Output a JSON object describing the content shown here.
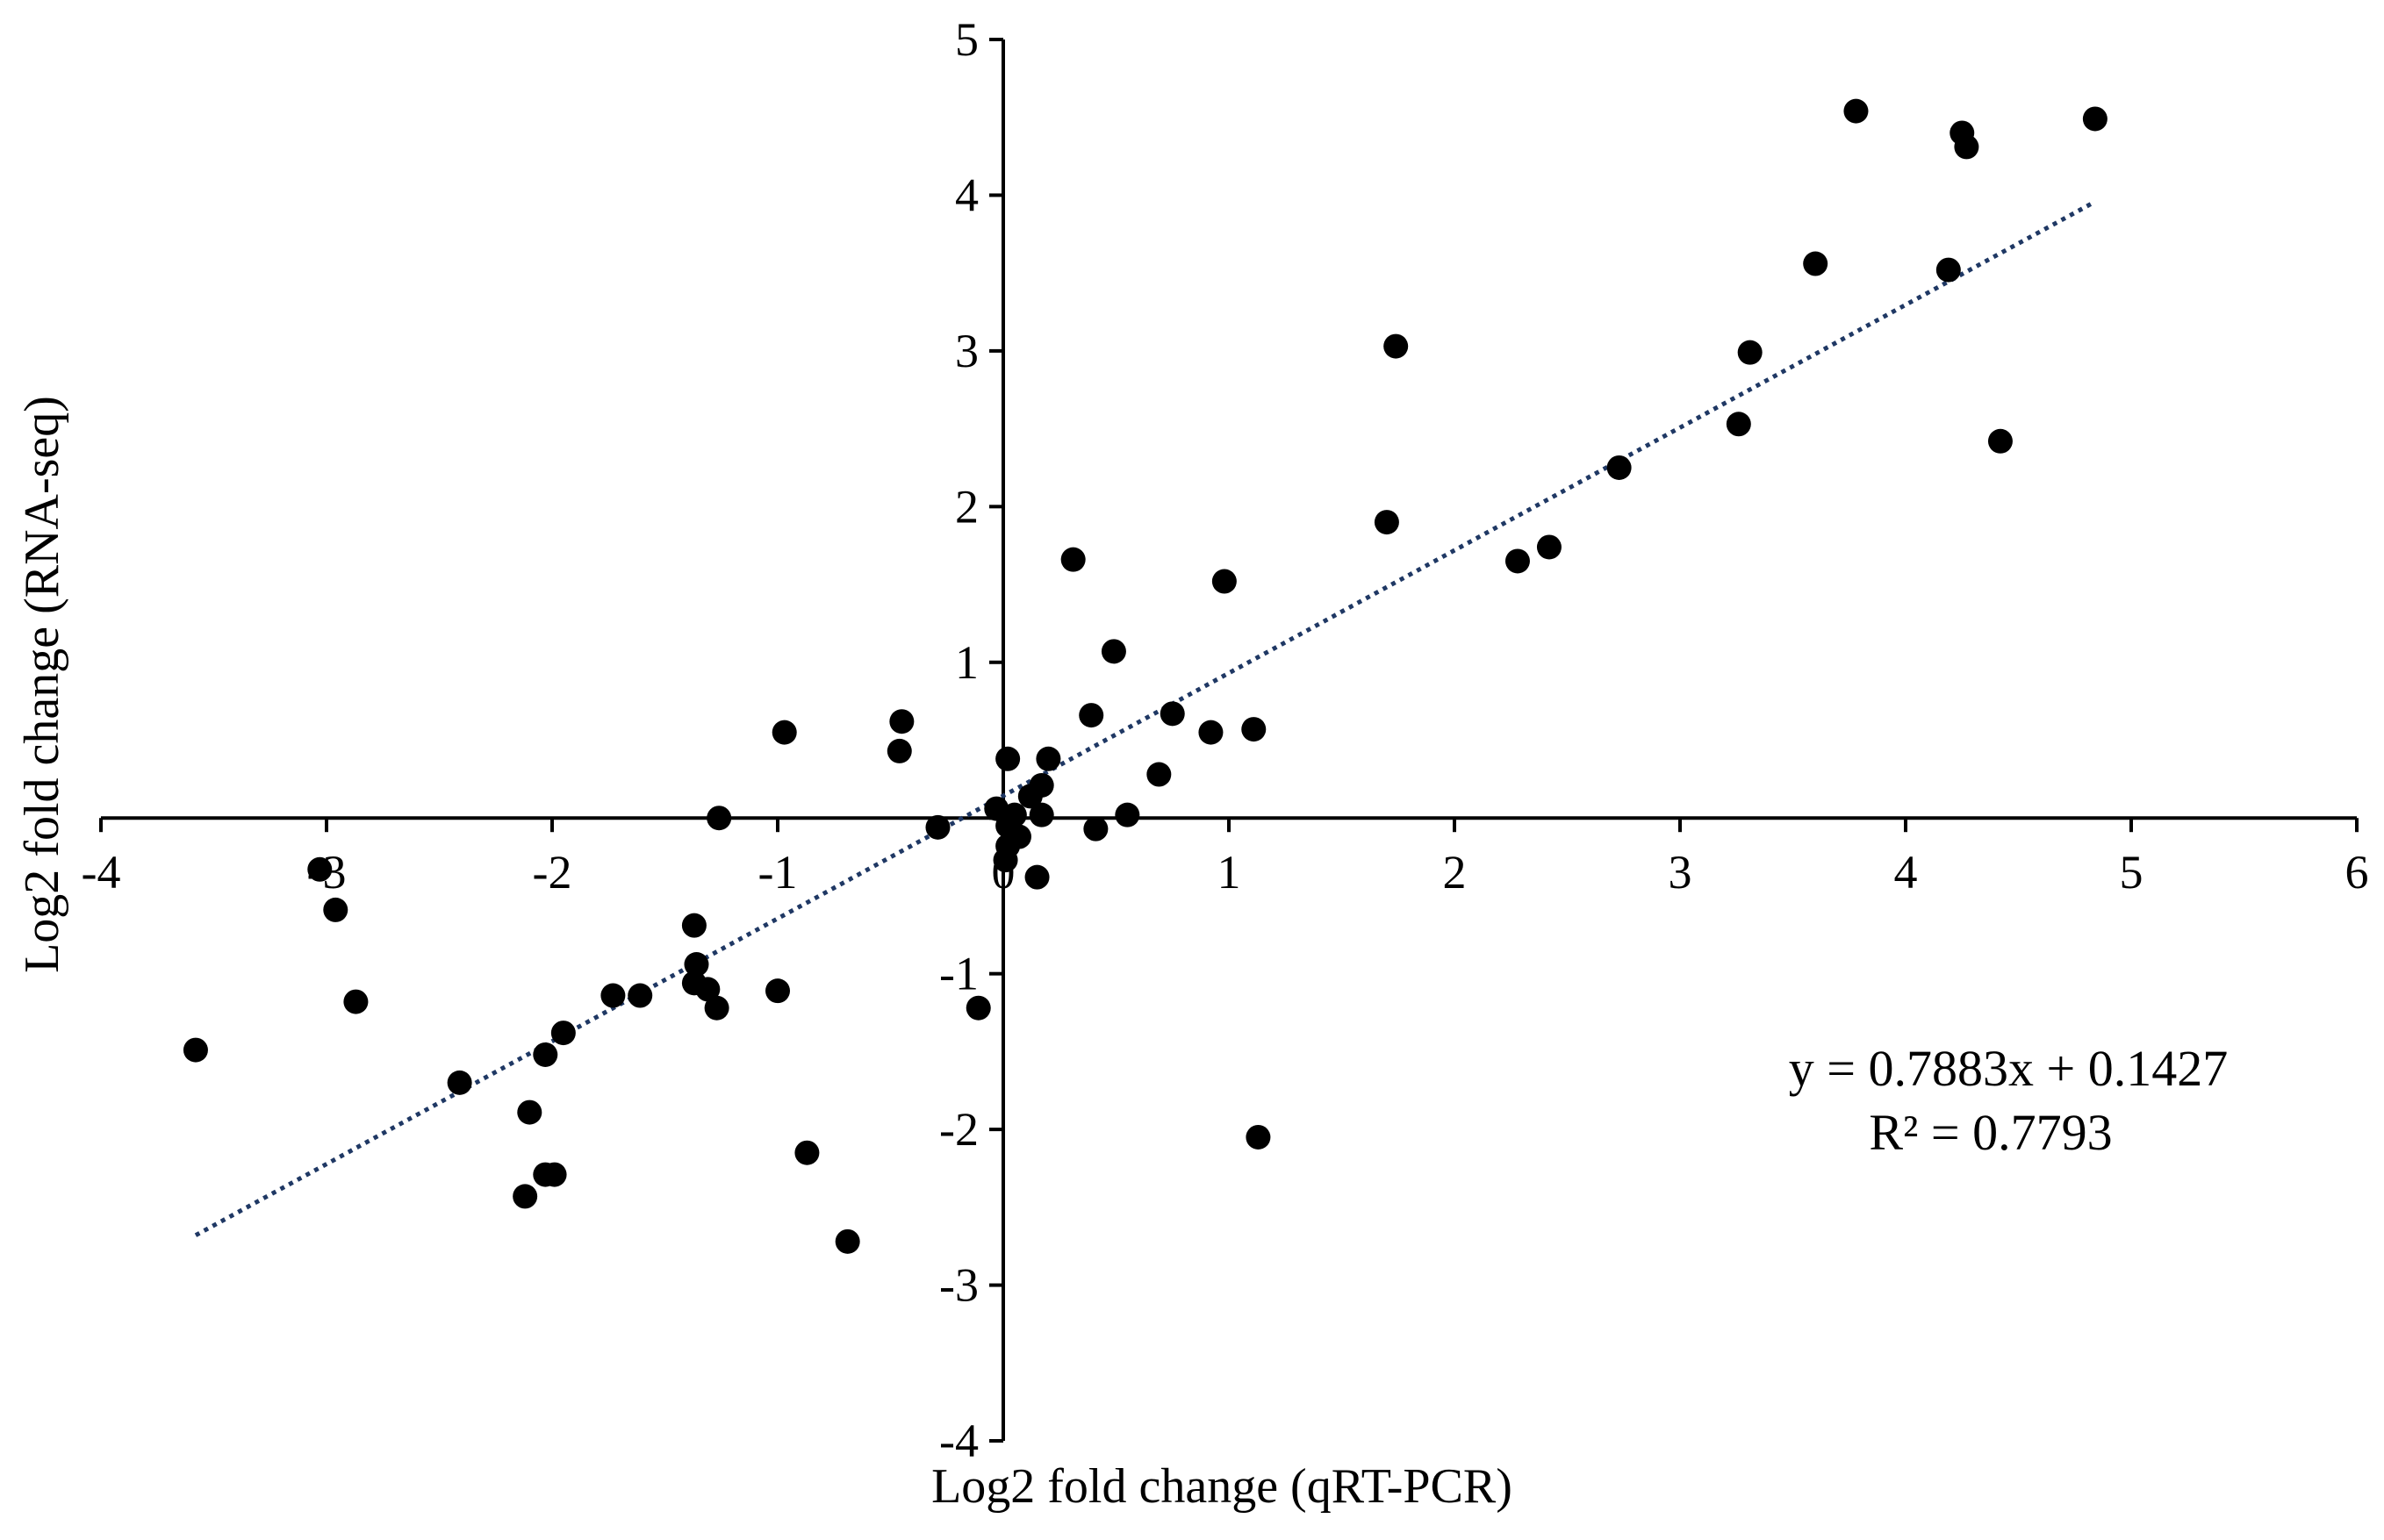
{
  "chart_data": {
    "type": "scatter",
    "title": "",
    "xlabel": "Log2 fold change (qRT-PCR)",
    "ylabel": "Log2 fold change (RNA-seq)",
    "xlim": [
      -4,
      6
    ],
    "ylim": [
      -4,
      5
    ],
    "x_ticks": [
      -4,
      -3,
      -2,
      -1,
      0,
      1,
      2,
      3,
      4,
      5,
      6
    ],
    "y_ticks": [
      -4,
      -3,
      -2,
      -1,
      0,
      1,
      2,
      3,
      4,
      5
    ],
    "grid": false,
    "legend": "none",
    "marker_color": "#000000",
    "trendline": {
      "style": "dotted",
      "color": "#1f3864",
      "slope": 0.7883,
      "intercept": 0.1427,
      "x_range": [
        -3.58,
        4.84
      ],
      "equation_label": "y = 0.7883x + 0.1427",
      "r2_label": "R² = 0.7793"
    },
    "points": [
      {
        "x": 3.78,
        "y": 4.54
      },
      {
        "x": 4.84,
        "y": 4.49
      },
      {
        "x": 4.25,
        "y": 4.4
      },
      {
        "x": 4.27,
        "y": 4.31
      },
      {
        "x": 3.6,
        "y": 3.56
      },
      {
        "x": 4.19,
        "y": 3.52
      },
      {
        "x": 1.74,
        "y": 3.03
      },
      {
        "x": 3.31,
        "y": 2.99
      },
      {
        "x": 3.26,
        "y": 2.53
      },
      {
        "x": 4.42,
        "y": 2.42
      },
      {
        "x": 2.73,
        "y": 2.25
      },
      {
        "x": 1.7,
        "y": 1.9
      },
      {
        "x": 2.42,
        "y": 1.74
      },
      {
        "x": 2.28,
        "y": 1.65
      },
      {
        "x": 0.31,
        "y": 1.66
      },
      {
        "x": 0.98,
        "y": 1.52
      },
      {
        "x": 0.49,
        "y": 1.07
      },
      {
        "x": 0.39,
        "y": 0.66
      },
      {
        "x": 0.75,
        "y": 0.67
      },
      {
        "x": 0.92,
        "y": 0.55
      },
      {
        "x": 1.11,
        "y": 0.57
      },
      {
        "x": 0.69,
        "y": 0.28
      },
      {
        "x": 0.02,
        "y": 0.38
      },
      {
        "x": 0.2,
        "y": 0.38
      },
      {
        "x": 0.17,
        "y": 0.21
      },
      {
        "x": 0.12,
        "y": 0.14
      },
      {
        "x": -0.03,
        "y": 0.06
      },
      {
        "x": 0.05,
        "y": 0.02
      },
      {
        "x": 0.17,
        "y": 0.02
      },
      {
        "x": 0.55,
        "y": 0.02
      },
      {
        "x": 0.02,
        "y": -0.05
      },
      {
        "x": 0.07,
        "y": -0.12
      },
      {
        "x": 0.02,
        "y": -0.18
      },
      {
        "x": 0.01,
        "y": -0.27
      },
      {
        "x": 0.15,
        "y": -0.38
      },
      {
        "x": 0.41,
        "y": -0.07
      },
      {
        "x": -0.29,
        "y": -0.06
      },
      {
        "x": -0.97,
        "y": 0.55
      },
      {
        "x": -0.45,
        "y": 0.62
      },
      {
        "x": -0.46,
        "y": 0.43
      },
      {
        "x": -1.26,
        "y": 0.0
      },
      {
        "x": -0.11,
        "y": -1.22
      },
      {
        "x": 1.13,
        "y": -2.05
      },
      {
        "x": -0.87,
        "y": -2.15
      },
      {
        "x": -0.69,
        "y": -2.72
      },
      {
        "x": -1.0,
        "y": -1.11
      },
      {
        "x": -1.37,
        "y": -0.69
      },
      {
        "x": -1.36,
        "y": -0.94
      },
      {
        "x": -1.37,
        "y": -1.06
      },
      {
        "x": -1.31,
        "y": -1.1
      },
      {
        "x": -1.27,
        "y": -1.22
      },
      {
        "x": -1.73,
        "y": -1.14
      },
      {
        "x": -1.61,
        "y": -1.14
      },
      {
        "x": -1.95,
        "y": -1.38
      },
      {
        "x": -2.03,
        "y": -1.52
      },
      {
        "x": -2.41,
        "y": -1.7
      },
      {
        "x": -2.1,
        "y": -1.89
      },
      {
        "x": -1.99,
        "y": -2.29
      },
      {
        "x": -2.03,
        "y": -2.29
      },
      {
        "x": -2.12,
        "y": -2.43
      },
      {
        "x": -3.03,
        "y": -0.33
      },
      {
        "x": -2.96,
        "y": -0.59
      },
      {
        "x": -2.87,
        "y": -1.18
      },
      {
        "x": -3.58,
        "y": -1.49
      }
    ]
  }
}
